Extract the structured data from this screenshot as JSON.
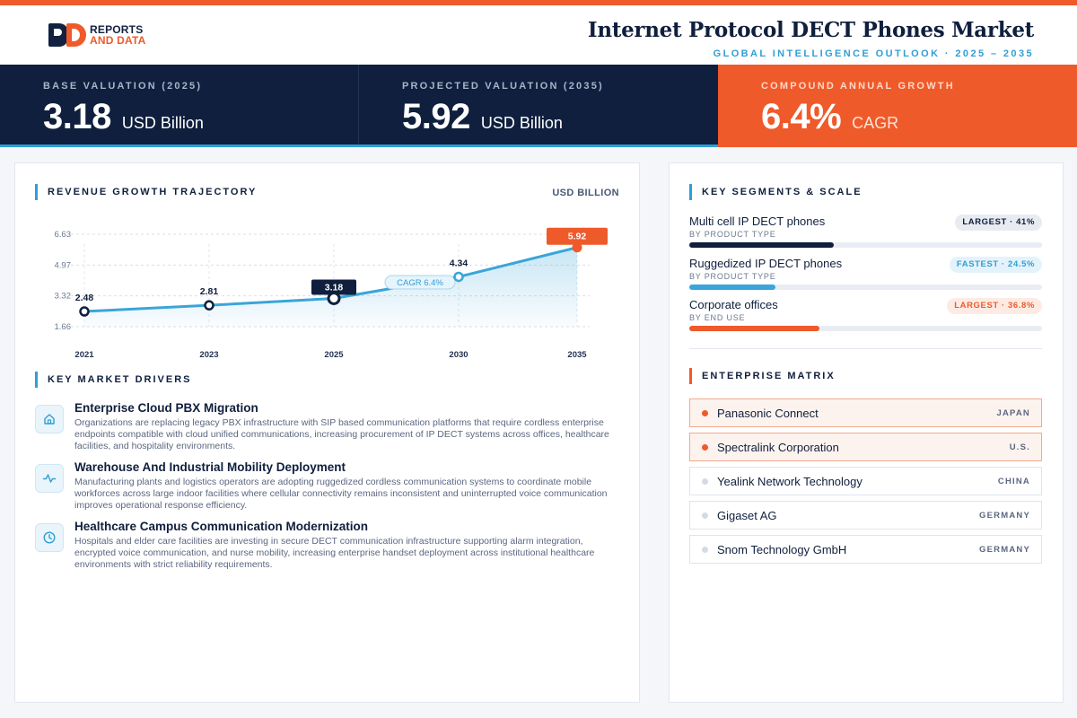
{
  "brand": {
    "logo_line1": "REPORTS",
    "logo_line2": "AND DATA"
  },
  "header": {
    "title": "Internet Protocol DECT Phones Market",
    "subtitle": "GLOBAL INTELLIGENCE OUTLOOK  ·  2025 – 2035"
  },
  "kpis": [
    {
      "label": "BASE VALUATION (2025)",
      "value": "3.18",
      "unit": "USD Billion"
    },
    {
      "label": "PROJECTED VALUATION (2035)",
      "value": "5.92",
      "unit": "USD Billion"
    },
    {
      "label": "COMPOUND ANNUAL GROWTH",
      "value": "6.4%",
      "unit": "CAGR"
    }
  ],
  "chart_section": {
    "title": "REVENUE GROWTH TRAJECTORY",
    "unit": "USD BILLION",
    "cagr_label": "CAGR 6.4%"
  },
  "chart_data": {
    "type": "area",
    "x": [
      "2021",
      "2023",
      "2025",
      "2030",
      "2035"
    ],
    "values": [
      2.48,
      2.81,
      3.18,
      4.34,
      5.92
    ],
    "y_ticks": [
      "6.63",
      "4.97",
      "3.32",
      "1.66"
    ],
    "ylim": [
      1.66,
      6.63
    ],
    "grid": true,
    "highlight": {
      "base": "2025",
      "projected": "2035"
    },
    "colors": {
      "line": "#3aa5d9",
      "base_marker": "#0f1f3d",
      "end_marker": "#ef5a2a"
    }
  },
  "drivers_section": {
    "title": "KEY MARKET DRIVERS"
  },
  "drivers": [
    {
      "icon": "building-icon",
      "title": "Enterprise Cloud PBX Migration",
      "desc": "Organizations are replacing legacy PBX infrastructure with SIP based communication platforms that require cordless enterprise endpoints compatible with cloud unified communications, increasing procurement of IP DECT systems across offices, healthcare facilities, and hospitality environments."
    },
    {
      "icon": "activity-icon",
      "title": "Warehouse And Industrial Mobility Deployment",
      "desc": "Manufacturing plants and logistics operators are adopting ruggedized cordless communication systems to coordinate mobile workforces across large indoor facilities where cellular connectivity remains inconsistent and uninterrupted voice communication improves operational response efficiency."
    },
    {
      "icon": "clock-icon",
      "title": "Healthcare Campus Communication Modernization",
      "desc": "Hospitals and elder care facilities are investing in secure DECT communication infrastructure supporting alarm integration, encrypted voice communication, and nurse mobility, increasing enterprise handset deployment across institutional healthcare environments with strict reliability requirements."
    }
  ],
  "segments_section": {
    "title": "KEY SEGMENTS & SCALE"
  },
  "segments": [
    {
      "name": "Multi cell IP DECT phones",
      "sub": "BY PRODUCT TYPE",
      "badge": "LARGEST · 41%",
      "share": 41,
      "color": "#0f1f3d",
      "badge_bg": "#e8ebf1",
      "badge_fg": "#0f1f3d"
    },
    {
      "name": "Ruggedized IP DECT phones",
      "sub": "BY PRODUCT TYPE",
      "badge": "FASTEST · 24.5%",
      "share": 24.5,
      "color": "#3aa5d9",
      "badge_bg": "#e4f3fb",
      "badge_fg": "#2f9fd6"
    },
    {
      "name": "Corporate offices",
      "sub": "BY END USE",
      "badge": "LARGEST · 36.8%",
      "share": 36.8,
      "color": "#ef5a2a",
      "badge_bg": "#fdebe3",
      "badge_fg": "#ef5a2a"
    }
  ],
  "matrix_section": {
    "title": "ENTERPRISE MATRIX"
  },
  "companies": [
    {
      "name": "Panasonic Connect",
      "country": "JAPAN",
      "highlight": true
    },
    {
      "name": "Spectralink Corporation",
      "country": "U.S.",
      "highlight": true
    },
    {
      "name": "Yealink Network Technology",
      "country": "CHINA",
      "highlight": false
    },
    {
      "name": "Gigaset AG",
      "country": "GERMANY",
      "highlight": false
    },
    {
      "name": "Snom Technology GmbH",
      "country": "GERMANY",
      "highlight": false
    }
  ]
}
